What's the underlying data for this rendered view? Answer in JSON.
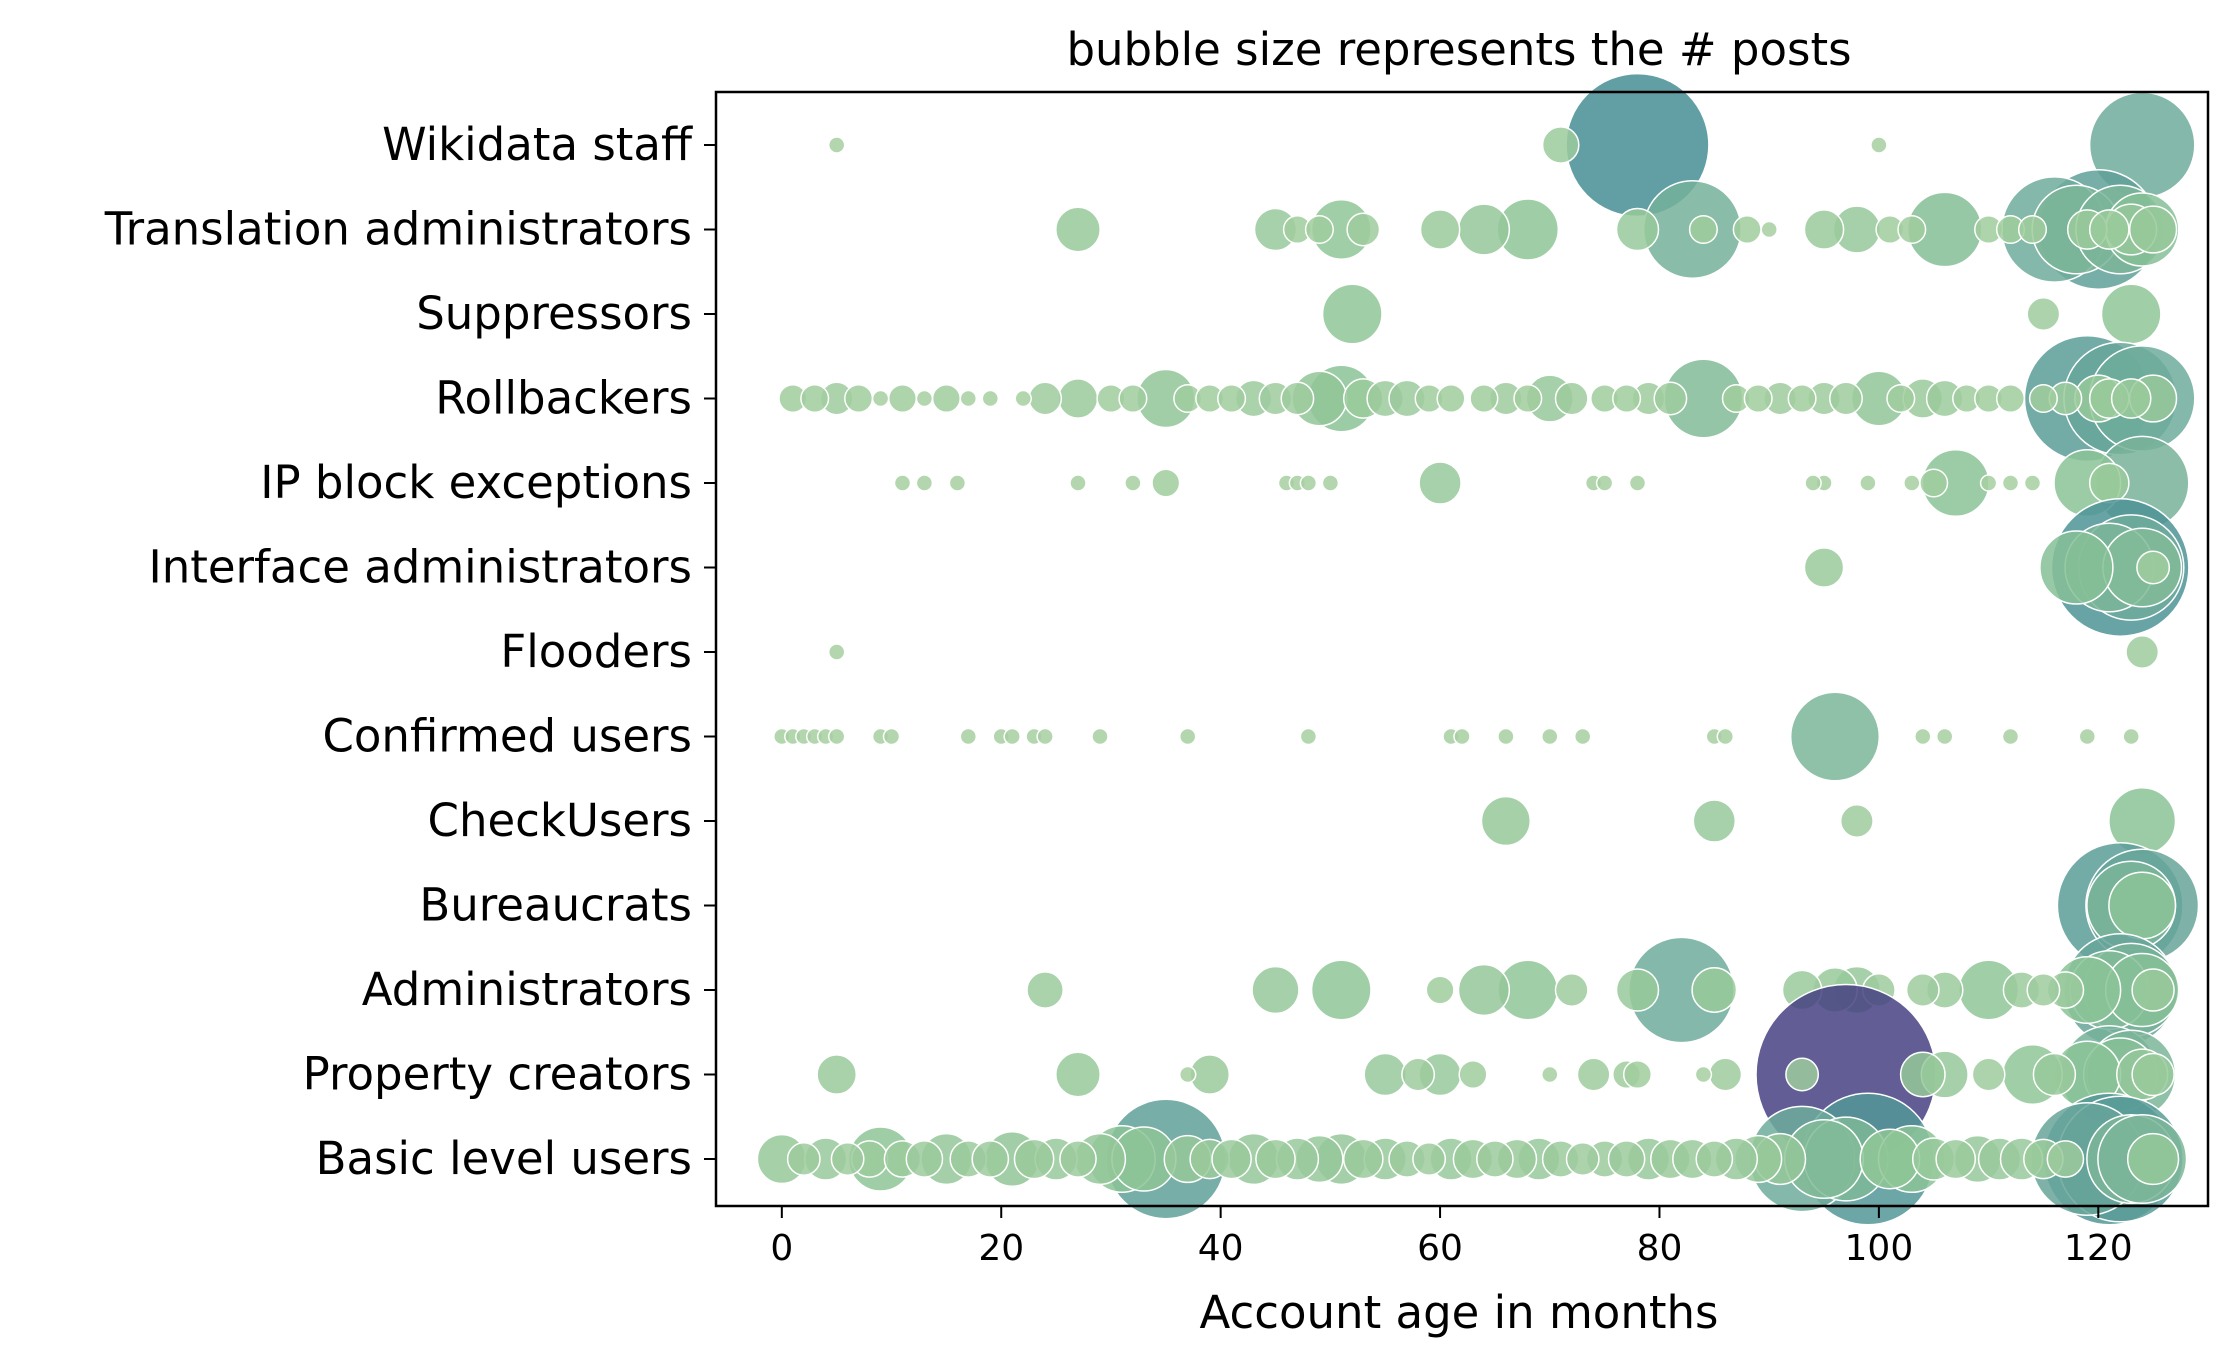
{
  "chart_data": {
    "type": "scatter",
    "title": "bubble size represents the # posts",
    "xlabel": "Account age in months",
    "ylabel": "",
    "xlim": [
      -6,
      130
    ],
    "xticks": [
      0,
      20,
      40,
      60,
      80,
      100,
      120
    ],
    "categories": [
      "Wikidata staff",
      "Translation administrators",
      "Suppressors",
      "Rollbackers",
      "IP block exceptions",
      "Interface administrators",
      "Flooders",
      "Confirmed users",
      "CheckUsers",
      "Bureaucrats",
      "Administrators",
      "Property creators",
      "Basic level users"
    ],
    "size_scale": "relative post count (1 = smallest bubble)",
    "series": [
      {
        "name": "Wikidata staff",
        "points": [
          [
            5,
            1
          ],
          [
            71,
            4
          ],
          [
            78,
            120
          ],
          [
            100,
            1
          ],
          [
            124,
            60
          ]
        ]
      },
      {
        "name": "Translation administrators",
        "points": [
          [
            27,
            7
          ],
          [
            45,
            6
          ],
          [
            47,
            2
          ],
          [
            49,
            2
          ],
          [
            51,
            15
          ],
          [
            53,
            3
          ],
          [
            60,
            5
          ],
          [
            64,
            10
          ],
          [
            68,
            16
          ],
          [
            78,
            6
          ],
          [
            83,
            50
          ],
          [
            84,
            2
          ],
          [
            88,
            2
          ],
          [
            90,
            1
          ],
          [
            95,
            5
          ],
          [
            98,
            8
          ],
          [
            101,
            2
          ],
          [
            103,
            2
          ],
          [
            106,
            26
          ],
          [
            110,
            2
          ],
          [
            112,
            2
          ],
          [
            114,
            2
          ],
          [
            116,
            60
          ],
          [
            118,
            40
          ],
          [
            119,
            5
          ],
          [
            120,
            80
          ],
          [
            121,
            5
          ],
          [
            122,
            40
          ],
          [
            123,
            10
          ],
          [
            124,
            25
          ],
          [
            125,
            8
          ]
        ]
      },
      {
        "name": "Suppressors",
        "points": [
          [
            52,
            15
          ],
          [
            115,
            3
          ],
          [
            123,
            15
          ]
        ]
      },
      {
        "name": "Rollbackers",
        "points": [
          [
            1,
            2
          ],
          [
            3,
            2
          ],
          [
            5,
            3
          ],
          [
            7,
            2
          ],
          [
            9,
            1
          ],
          [
            11,
            2
          ],
          [
            13,
            1
          ],
          [
            15,
            2
          ],
          [
            17,
            1
          ],
          [
            19,
            1
          ],
          [
            22,
            1
          ],
          [
            24,
            3
          ],
          [
            27,
            5
          ],
          [
            30,
            2
          ],
          [
            32,
            2
          ],
          [
            35,
            14
          ],
          [
            37,
            2
          ],
          [
            39,
            2
          ],
          [
            41,
            2
          ],
          [
            43,
            4
          ],
          [
            45,
            3
          ],
          [
            47,
            3
          ],
          [
            49,
            12
          ],
          [
            51,
            20
          ],
          [
            53,
            5
          ],
          [
            55,
            4
          ],
          [
            57,
            4
          ],
          [
            59,
            2
          ],
          [
            61,
            2
          ],
          [
            64,
            2
          ],
          [
            66,
            3
          ],
          [
            68,
            2
          ],
          [
            70,
            8
          ],
          [
            72,
            3
          ],
          [
            75,
            2
          ],
          [
            77,
            2
          ],
          [
            79,
            3
          ],
          [
            81,
            3
          ],
          [
            84,
            30
          ],
          [
            87,
            2
          ],
          [
            89,
            2
          ],
          [
            91,
            3
          ],
          [
            93,
            2
          ],
          [
            95,
            3
          ],
          [
            97,
            3
          ],
          [
            100,
            12
          ],
          [
            102,
            2
          ],
          [
            104,
            5
          ],
          [
            106,
            4
          ],
          [
            108,
            2
          ],
          [
            110,
            2
          ],
          [
            112,
            2
          ],
          [
            115,
            2
          ],
          [
            117,
            3
          ],
          [
            119,
            90
          ],
          [
            120,
            8
          ],
          [
            121,
            5
          ],
          [
            122,
            70
          ],
          [
            123,
            5
          ],
          [
            124,
            60
          ],
          [
            125,
            8
          ]
        ]
      },
      {
        "name": "IP block exceptions",
        "points": [
          [
            11,
            1
          ],
          [
            13,
            1
          ],
          [
            16,
            1
          ],
          [
            27,
            1
          ],
          [
            32,
            1
          ],
          [
            35,
            2
          ],
          [
            46,
            1
          ],
          [
            47,
            1
          ],
          [
            48,
            1
          ],
          [
            50,
            1
          ],
          [
            60,
            6
          ],
          [
            74,
            1
          ],
          [
            75,
            1
          ],
          [
            78,
            1
          ],
          [
            95,
            1
          ],
          [
            94,
            1
          ],
          [
            99,
            1
          ],
          [
            103,
            1
          ],
          [
            105,
            2
          ],
          [
            107,
            20
          ],
          [
            110,
            1
          ],
          [
            112,
            1
          ],
          [
            114,
            1
          ],
          [
            119,
            20
          ],
          [
            121,
            5
          ],
          [
            124,
            45
          ]
        ]
      },
      {
        "name": "Interface administrators",
        "points": [
          [
            95,
            5
          ],
          [
            118,
            25
          ],
          [
            121,
            40
          ],
          [
            122,
            110
          ],
          [
            123,
            60
          ],
          [
            124,
            30
          ],
          [
            125,
            3
          ]
        ]
      },
      {
        "name": "Flooders",
        "points": [
          [
            5,
            1
          ],
          [
            124,
            3
          ]
        ]
      },
      {
        "name": "Confirmed users",
        "points": [
          [
            0,
            1
          ],
          [
            1,
            1
          ],
          [
            2,
            1
          ],
          [
            3,
            1
          ],
          [
            4,
            1
          ],
          [
            5,
            1
          ],
          [
            9,
            1
          ],
          [
            10,
            1
          ],
          [
            17,
            1
          ],
          [
            20,
            1
          ],
          [
            21,
            1
          ],
          [
            23,
            1
          ],
          [
            24,
            1
          ],
          [
            29,
            1
          ],
          [
            37,
            1
          ],
          [
            48,
            1
          ],
          [
            61,
            1
          ],
          [
            62,
            1
          ],
          [
            66,
            1
          ],
          [
            70,
            1
          ],
          [
            73,
            1
          ],
          [
            85,
            1
          ],
          [
            86,
            1
          ],
          [
            96,
            40
          ],
          [
            104,
            1
          ],
          [
            106,
            1
          ],
          [
            112,
            1
          ],
          [
            119,
            1
          ],
          [
            123,
            1
          ]
        ]
      },
      {
        "name": "CheckUsers",
        "points": [
          [
            66,
            9
          ],
          [
            85,
            6
          ],
          [
            98,
            3
          ],
          [
            124,
            20
          ]
        ]
      },
      {
        "name": "Bureaucrats",
        "points": [
          [
            122,
            90
          ],
          [
            124,
            70
          ],
          [
            123,
            40
          ],
          [
            124,
            20
          ]
        ]
      },
      {
        "name": "Administrators",
        "points": [
          [
            24,
            4
          ],
          [
            45,
            8
          ],
          [
            51,
            15
          ],
          [
            60,
            2
          ],
          [
            64,
            10
          ],
          [
            68,
            15
          ],
          [
            72,
            3
          ],
          [
            78,
            6
          ],
          [
            82,
            60
          ],
          [
            85,
            7
          ],
          [
            93,
            5
          ],
          [
            96,
            7
          ],
          [
            98,
            8
          ],
          [
            100,
            3
          ],
          [
            104,
            3
          ],
          [
            106,
            4
          ],
          [
            110,
            15
          ],
          [
            113,
            4
          ],
          [
            115,
            3
          ],
          [
            117,
            4
          ],
          [
            119,
            20
          ],
          [
            121,
            30
          ],
          [
            122,
            70
          ],
          [
            123,
            45
          ],
          [
            124,
            25
          ],
          [
            125,
            6
          ]
        ]
      },
      {
        "name": "Property creators",
        "points": [
          [
            5,
            5
          ],
          [
            27,
            7
          ],
          [
            37,
            1
          ],
          [
            39,
            5
          ],
          [
            55,
            6
          ],
          [
            58,
            3
          ],
          [
            60,
            6
          ],
          [
            63,
            2
          ],
          [
            70,
            1
          ],
          [
            74,
            3
          ],
          [
            77,
            2
          ],
          [
            78,
            2
          ],
          [
            84,
            1
          ],
          [
            86,
            3
          ],
          [
            93,
            3
          ],
          [
            97,
            200
          ],
          [
            104,
            7
          ],
          [
            106,
            8
          ],
          [
            110,
            3
          ],
          [
            114,
            15
          ],
          [
            116,
            6
          ],
          [
            119,
            20
          ],
          [
            121,
            50
          ],
          [
            122,
            25
          ],
          [
            123,
            40
          ],
          [
            124,
            10
          ],
          [
            125,
            6
          ]
        ]
      },
      {
        "name": "Basic level users",
        "points": [
          [
            0,
            9
          ],
          [
            2,
            3
          ],
          [
            4,
            6
          ],
          [
            6,
            3
          ],
          [
            8,
            4
          ],
          [
            9,
            18
          ],
          [
            11,
            4
          ],
          [
            13,
            4
          ],
          [
            15,
            10
          ],
          [
            17,
            4
          ],
          [
            19,
            4
          ],
          [
            21,
            12
          ],
          [
            23,
            5
          ],
          [
            25,
            6
          ],
          [
            27,
            4
          ],
          [
            29,
            10
          ],
          [
            31,
            20
          ],
          [
            33,
            18
          ],
          [
            35,
            80
          ],
          [
            37,
            8
          ],
          [
            39,
            5
          ],
          [
            41,
            5
          ],
          [
            43,
            10
          ],
          [
            45,
            5
          ],
          [
            47,
            6
          ],
          [
            49,
            8
          ],
          [
            51,
            10
          ],
          [
            53,
            5
          ],
          [
            55,
            6
          ],
          [
            57,
            4
          ],
          [
            59,
            3
          ],
          [
            61,
            6
          ],
          [
            63,
            5
          ],
          [
            65,
            4
          ],
          [
            67,
            5
          ],
          [
            69,
            6
          ],
          [
            71,
            4
          ],
          [
            73,
            3
          ],
          [
            75,
            4
          ],
          [
            77,
            4
          ],
          [
            79,
            6
          ],
          [
            81,
            5
          ],
          [
            83,
            5
          ],
          [
            85,
            4
          ],
          [
            87,
            6
          ],
          [
            89,
            8
          ],
          [
            91,
            10
          ],
          [
            93,
            60
          ],
          [
            95,
            30
          ],
          [
            97,
            35
          ],
          [
            99,
            100
          ],
          [
            101,
            15
          ],
          [
            103,
            20
          ],
          [
            105,
            6
          ],
          [
            107,
            5
          ],
          [
            109,
            8
          ],
          [
            111,
            6
          ],
          [
            113,
            6
          ],
          [
            115,
            5
          ],
          [
            117,
            4
          ],
          [
            119,
            70
          ],
          [
            121,
            100
          ],
          [
            122,
            90
          ],
          [
            123,
            40
          ],
          [
            124,
            40
          ],
          [
            125,
            10
          ]
        ]
      }
    ]
  }
}
